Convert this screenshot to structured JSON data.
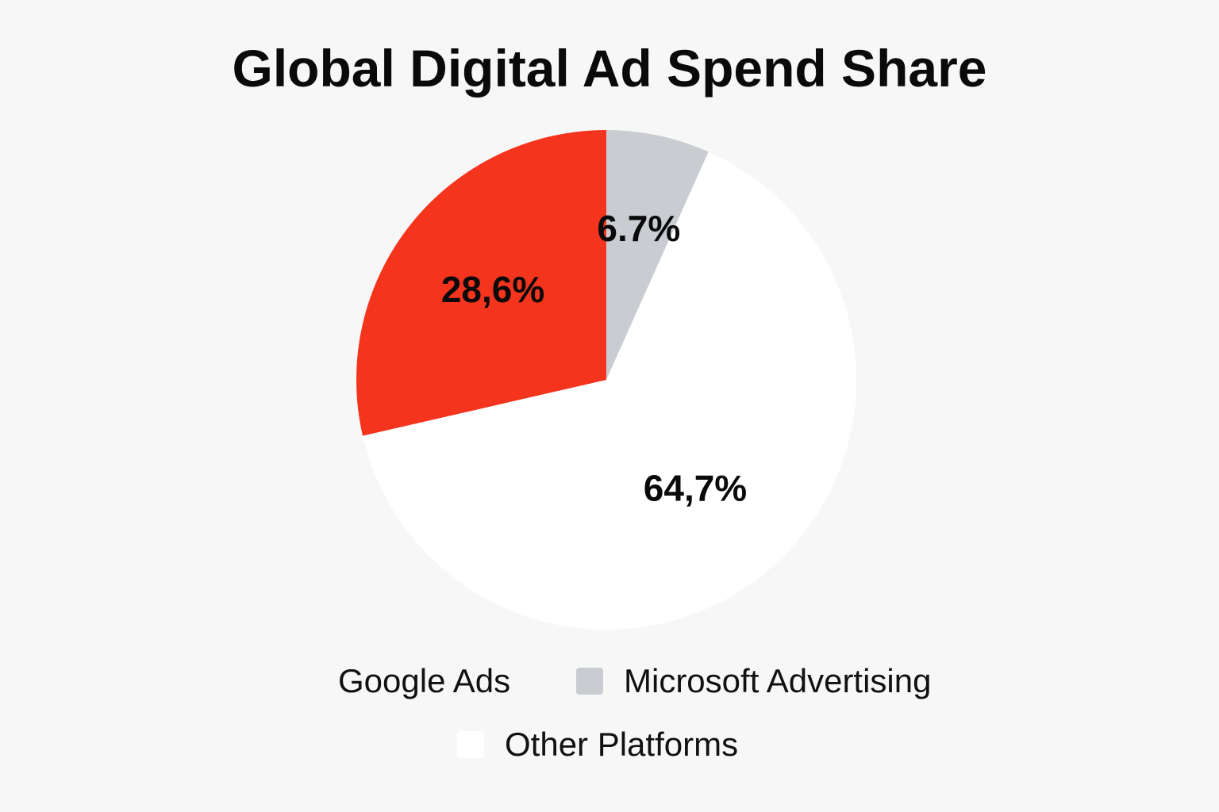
{
  "chart_data": {
    "type": "pie",
    "title": "Global Digital Ad Spend Share",
    "slices": [
      {
        "label": "Google Ads",
        "value": 28.6,
        "display": "28,6%",
        "color": "#f5341e",
        "legend_swatch_color": "#f7f7f7"
      },
      {
        "label": "Microsoft Advertising",
        "value": 6.7,
        "display": "6.7%",
        "color": "#c9cdd1",
        "legend_swatch_color": "#c9cdd1"
      },
      {
        "label": "Other Platforms",
        "value": 64.7,
        "display": "64,7%",
        "color": "#ffffff",
        "legend_swatch_color": "#ffffff"
      }
    ],
    "legend_placement": "bottom"
  }
}
